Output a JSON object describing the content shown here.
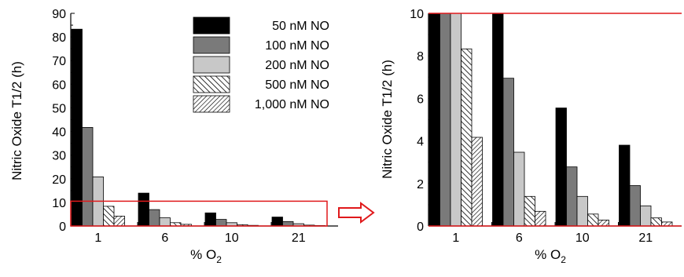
{
  "chart_data": [
    {
      "type": "bar",
      "xlabel": "% O",
      "xlabel_sub": "2",
      "ylabel": "Nitric Oxide T1/2 (h)",
      "ylim": [
        0,
        90
      ],
      "yticks": [
        0,
        10,
        20,
        30,
        40,
        50,
        60,
        70,
        80,
        90
      ],
      "categories": [
        "1",
        "6",
        "10",
        "21"
      ],
      "legend_position": "top-right",
      "series": [
        {
          "name": "50 nM NO",
          "values": [
            83.3,
            13.9,
            5.55,
            3.8
          ]
        },
        {
          "name": "100 nM NO",
          "values": [
            41.7,
            6.95,
            2.78,
            1.9
          ]
        },
        {
          "name": "200 nM NO",
          "values": [
            20.8,
            3.47,
            1.39,
            0.95
          ]
        },
        {
          "name": "500 nM NO",
          "values": [
            8.33,
            1.39,
            0.56,
            0.38
          ]
        },
        {
          "name": "1,000 nM NO",
          "values": [
            4.17,
            0.69,
            0.28,
            0.19
          ]
        }
      ],
      "highlight_region": {
        "ymin": 0,
        "ymax": 10,
        "color": "#e0191b"
      }
    },
    {
      "type": "bar",
      "xlabel": "% O",
      "xlabel_sub": "2",
      "ylabel": "Nitric Oxide T1/2 (h)",
      "ylim": [
        0,
        10
      ],
      "yticks": [
        0,
        2,
        4,
        6,
        8,
        10
      ],
      "categories": [
        "1",
        "6",
        "10",
        "21"
      ],
      "series": [
        {
          "name": "50 nM NO",
          "values": [
            10,
            10,
            5.55,
            3.8
          ]
        },
        {
          "name": "100 nM NO",
          "values": [
            10,
            6.95,
            2.78,
            1.9
          ]
        },
        {
          "name": "200 nM NO",
          "values": [
            10,
            3.47,
            1.39,
            0.95
          ]
        },
        {
          "name": "500 nM NO",
          "values": [
            8.33,
            1.39,
            0.56,
            0.38
          ]
        },
        {
          "name": "1,000 nM NO",
          "values": [
            4.17,
            0.69,
            0.28,
            0.19
          ]
        }
      ],
      "frame_color": "#e0191b"
    }
  ],
  "colors": {
    "series_fills": [
      "#000000",
      "#7a7a7a",
      "#c8c8c8",
      "hatch-forward",
      "hatch-back"
    ],
    "highlight": "#e0191b",
    "arrow": "#e0191b"
  },
  "arrow_icon": "right-arrow-outline"
}
